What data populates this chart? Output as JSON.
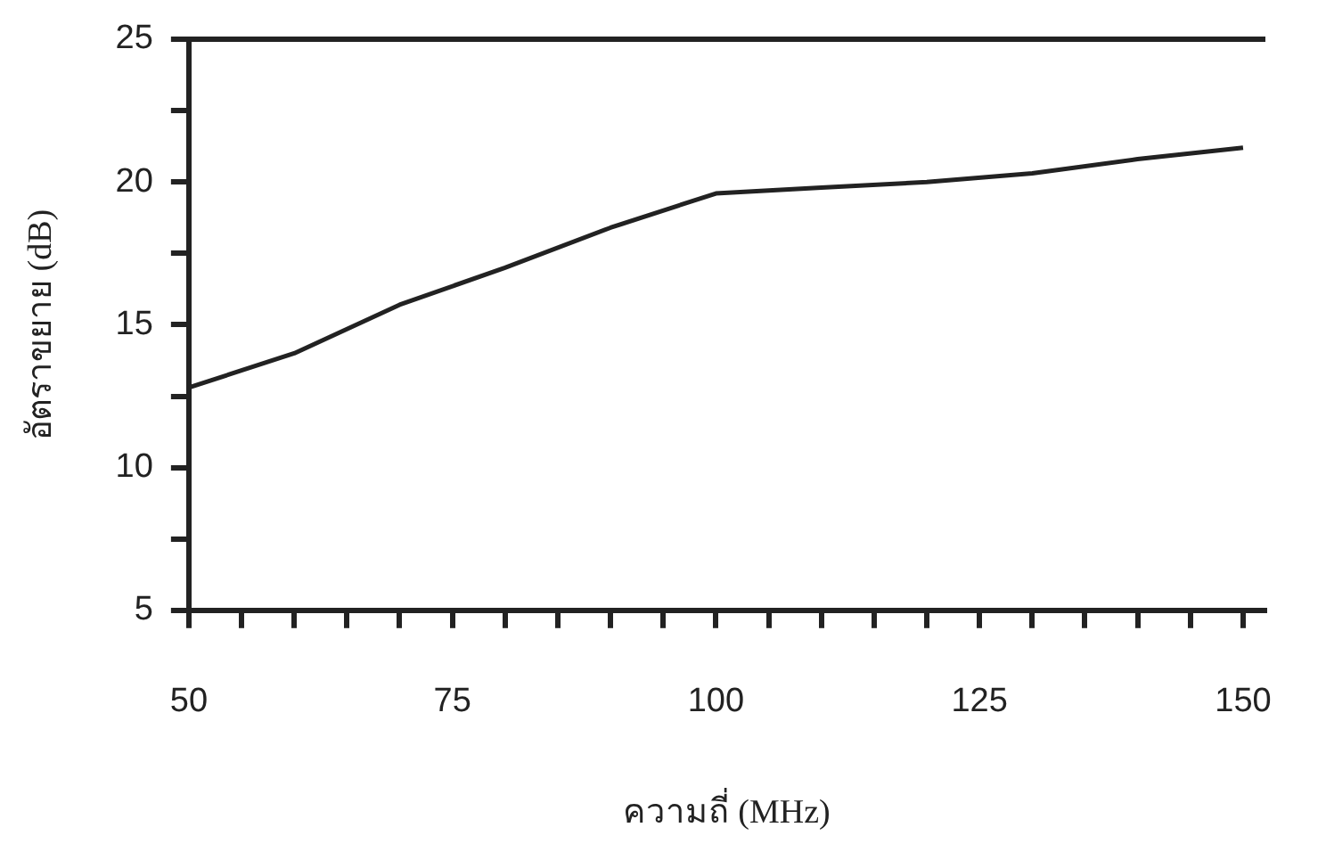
{
  "chart_data": {
    "type": "line",
    "xlabel": "ความถี่ (MHz)",
    "ylabel": "อัตราขยาย (dB)",
    "x": [
      50,
      60,
      70,
      80,
      90,
      100,
      110,
      120,
      130,
      140,
      150
    ],
    "series": [
      {
        "color": "#222222",
        "values": [
          12.8,
          14.0,
          15.7,
          17.0,
          18.4,
          19.6,
          19.8,
          20.0,
          20.3,
          20.8,
          21.2
        ]
      }
    ],
    "xlim": [
      50,
      152
    ],
    "xticks": [
      50,
      {
        "value": 55,
        "label": null
      },
      {
        "value": 60,
        "label": null
      },
      {
        "value": 65,
        "label": null
      },
      {
        "value": 70,
        "label": null
      },
      75,
      {
        "value": 80,
        "label": null
      },
      {
        "value": 85,
        "label": null
      },
      {
        "value": 90,
        "label": null
      },
      {
        "value": 95,
        "label": null
      },
      100,
      {
        "value": 105,
        "label": null
      },
      {
        "value": 110,
        "label": null
      },
      {
        "value": 115,
        "label": null
      },
      {
        "value": 120,
        "label": null
      },
      125,
      {
        "value": 130,
        "label": null
      },
      {
        "value": 135,
        "label": null
      },
      {
        "value": 140,
        "label": null
      },
      {
        "value": 145,
        "label": null
      },
      150
    ],
    "ylim": [
      5,
      25
    ],
    "yticks": [
      5,
      {
        "value": 7.5,
        "label": null
      },
      10,
      {
        "value": 12.5,
        "label": null
      },
      15,
      {
        "value": 17.5,
        "label": null
      },
      20,
      {
        "value": 22.5,
        "label": null
      },
      25
    ],
    "grid": false,
    "legend": false,
    "marker": "none",
    "line_style": "solid"
  }
}
